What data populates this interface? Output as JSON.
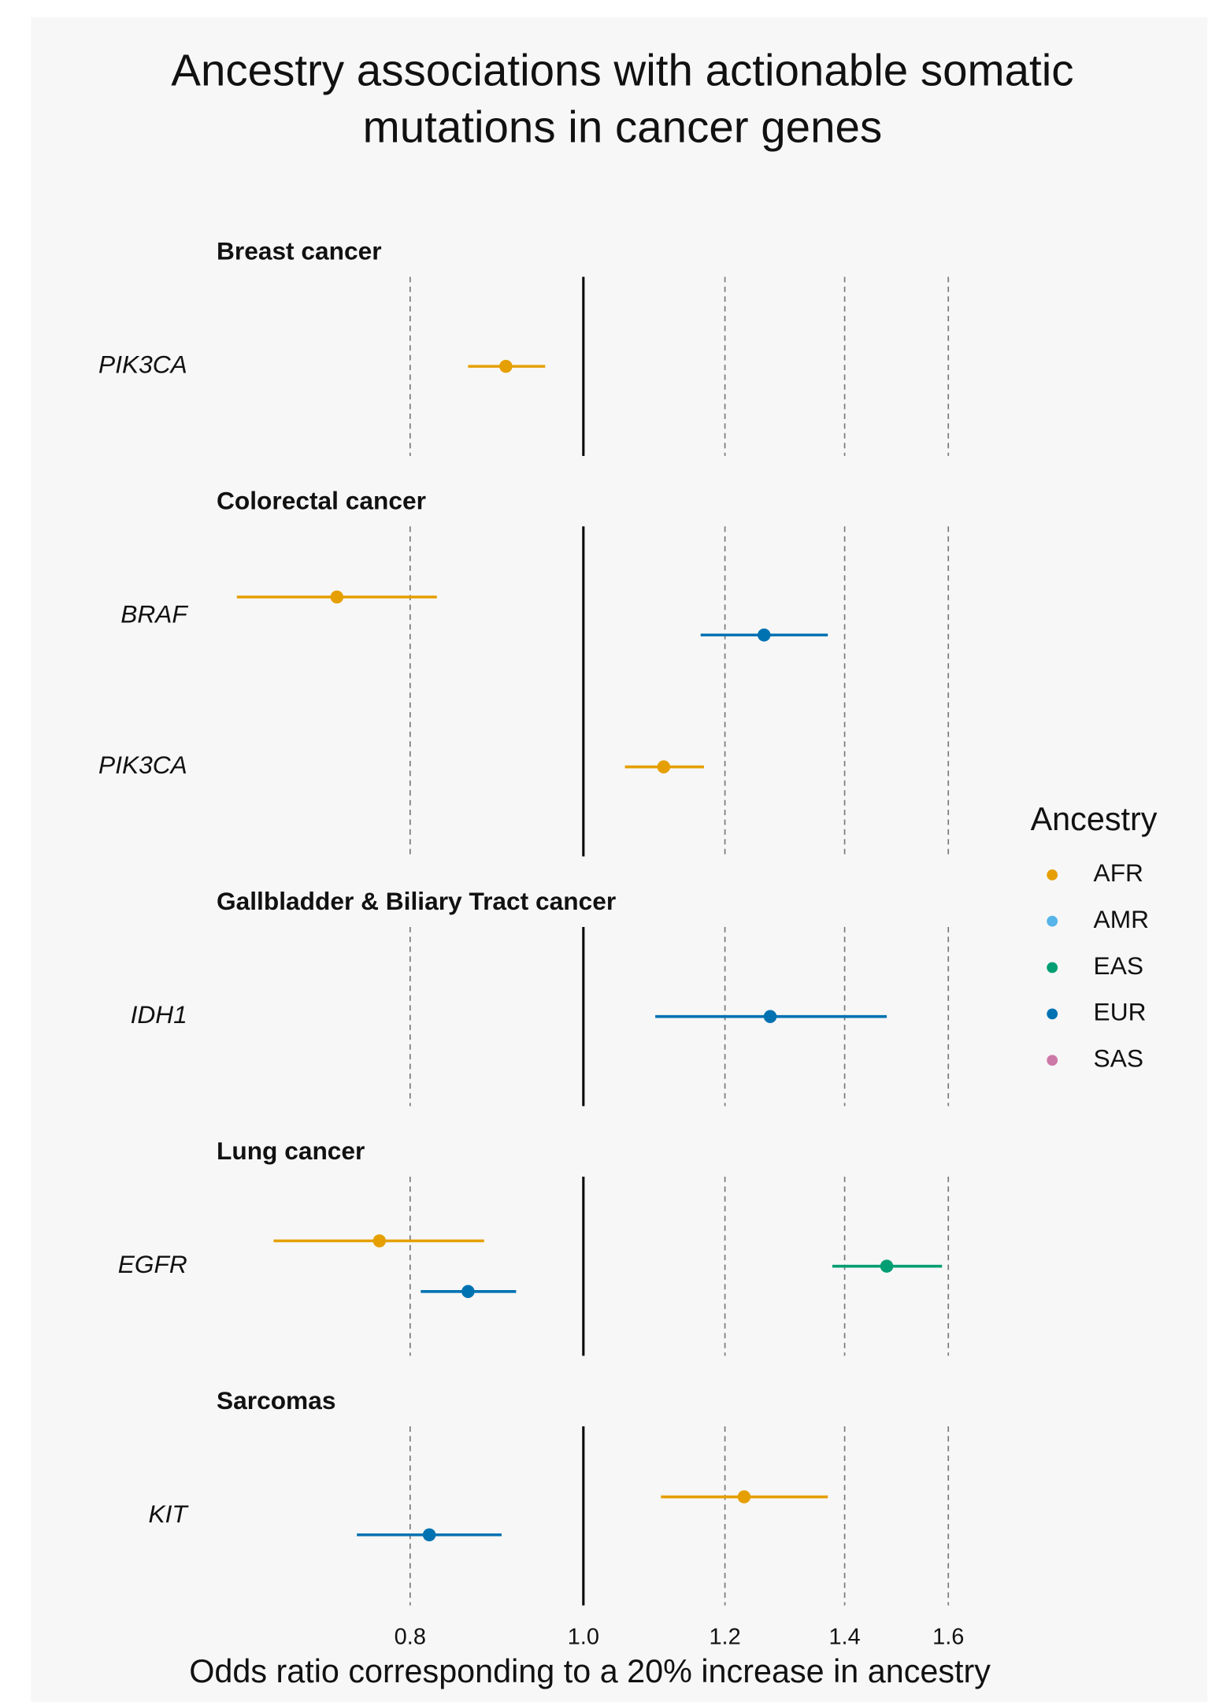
{
  "chart_data": {
    "type": "forest",
    "title": [
      "Ancestry associations with actionable somatic",
      "mutations in cancer genes"
    ],
    "x_label": "Odds ratio corresponding to a 20% increase in ancestry",
    "log_x": true,
    "xlim": [
      0.62,
      1.72
    ],
    "xticks": [
      0.8,
      {
        "value": 1,
        "label": "1.0"
      },
      1.2,
      1.4,
      1.6
    ],
    "reference_line": 1,
    "grid": true,
    "legend": {
      "title": "Ancestry",
      "position": "right",
      "entries": [
        {
          "name": "AFR",
          "color": "#E69F00"
        },
        {
          "name": "AMR",
          "color": "#56B4E9"
        },
        {
          "name": "EAS",
          "color": "#009E73"
        },
        {
          "name": "EUR",
          "color": "#0072B2"
        },
        {
          "name": "SAS",
          "color": "#CC79A7"
        }
      ]
    },
    "panels": [
      {
        "title": "Breast cancer",
        "rows": [
          {
            "gene": "PIK3CA",
            "points": [
              {
                "ancestry": "AFR",
                "or": 0.905,
                "lo": 0.862,
                "hi": 0.952
              }
            ]
          }
        ]
      },
      {
        "title": "Colorectal cancer",
        "rows": [
          {
            "gene": "BRAF",
            "points": [
              {
                "ancestry": "AFR",
                "or": 0.728,
                "lo": 0.64,
                "hi": 0.828
              },
              {
                "ancestry": "EUR",
                "or": 1.262,
                "lo": 1.163,
                "hi": 1.37
              }
            ]
          },
          {
            "gene": "PIK3CA",
            "points": [
              {
                "ancestry": "AFR",
                "or": 1.109,
                "lo": 1.055,
                "hi": 1.168
              }
            ]
          }
        ]
      },
      {
        "title": "Gallbladder & Biliary Tract cancer",
        "rows": [
          {
            "gene": "IDH1",
            "points": [
              {
                "ancestry": "EUR",
                "or": 1.272,
                "lo": 1.097,
                "hi": 1.478
              }
            ]
          }
        ]
      },
      {
        "title": "Lung cancer",
        "rows": [
          {
            "gene": "EGFR",
            "points": [
              {
                "ancestry": "AFR",
                "or": 0.769,
                "lo": 0.671,
                "hi": 0.88
              },
              {
                "ancestry": "EAS",
                "or": 1.478,
                "lo": 1.378,
                "hi": 1.587
              },
              {
                "ancestry": "EUR",
                "or": 0.862,
                "lo": 0.811,
                "hi": 0.917
              }
            ]
          }
        ]
      },
      {
        "title": "Sarcomas",
        "rows": [
          {
            "gene": "KIT",
            "points": [
              {
                "ancestry": "AFR",
                "or": 1.23,
                "lo": 1.105,
                "hi": 1.37
              },
              {
                "ancestry": "EUR",
                "or": 0.82,
                "lo": 0.747,
                "hi": 0.9
              }
            ]
          }
        ]
      }
    ]
  }
}
